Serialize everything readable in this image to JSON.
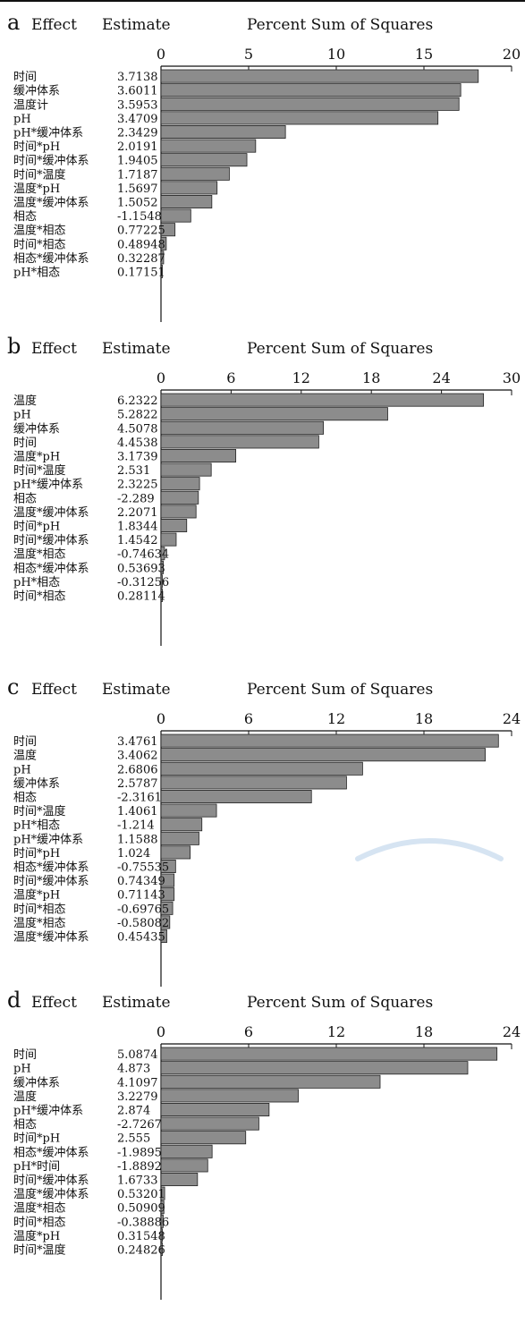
{
  "headers": {
    "effect": "Effect",
    "estimate": "Estimate",
    "title": "Percent Sum of Squares"
  },
  "colors": {
    "bar_fill": "#8c8c8c",
    "bar_stroke": "#222222"
  },
  "chart_data": [
    {
      "type": "bar",
      "orientation": "horizontal",
      "panel": "a",
      "xlim": [
        0,
        20
      ],
      "ticks": [
        0,
        5,
        10,
        15,
        20
      ],
      "effects": [
        "时间",
        "缓冲体系",
        "温度计",
        "pH",
        "pH*缓冲体系",
        "时间*pH",
        "时间*缓冲体系",
        "时间*温度",
        "温度*pH",
        "温度*缓冲体系",
        "相态",
        "温度*相态",
        "时间*相态",
        "相态*缓冲体系",
        "pH*相态"
      ],
      "estimates": [
        "3.7138",
        "3.6011",
        "3.5953",
        "3.4709",
        "2.3429",
        "2.0191",
        "1.9405",
        "1.7187",
        "1.5697",
        "1.5052",
        "-1.1548",
        "0.77225",
        "0.48948",
        "0.32287",
        "0.17151"
      ],
      "values": [
        18.1,
        17.1,
        17.0,
        15.8,
        7.1,
        5.4,
        4.9,
        3.9,
        3.2,
        2.9,
        1.7,
        0.8,
        0.3,
        0.15,
        0.05
      ]
    },
    {
      "type": "bar",
      "orientation": "horizontal",
      "panel": "b",
      "xlim": [
        0,
        30
      ],
      "ticks": [
        0,
        6,
        12,
        18,
        24,
        30
      ],
      "effects": [
        "温度",
        "pH",
        "缓冲体系",
        "时间",
        "温度*pH",
        "时间*温度",
        "pH*缓冲体系",
        "相态",
        "温度*缓冲体系",
        "时间*pH",
        "时间*缓冲体系",
        "温度*相态",
        "相态*缓冲体系",
        "pH*相态",
        "时间*相态"
      ],
      "estimates": [
        "6.2322",
        "5.2822",
        "4.5078",
        "4.4538",
        "3.1739",
        "2.531",
        "2.3225",
        "-2.289",
        "2.2071",
        "1.8344",
        "1.4542",
        "-0.74634",
        "0.53693",
        "-0.31256",
        "0.28114"
      ],
      "values": [
        27.6,
        19.4,
        13.9,
        13.5,
        6.4,
        4.3,
        3.3,
        3.2,
        3.0,
        2.2,
        1.3,
        0.3,
        0.2,
        0.1,
        0.05
      ]
    },
    {
      "type": "bar",
      "orientation": "horizontal",
      "panel": "c",
      "xlim": [
        0,
        24
      ],
      "ticks": [
        0,
        6,
        12,
        18,
        24
      ],
      "effects": [
        "时间",
        "温度",
        "pH",
        "缓冲体系",
        "相态",
        "时间*温度",
        "pH*相态",
        "pH*缓冲体系",
        "时间*pH",
        "相态*缓冲体系",
        "时间*缓冲体系",
        "温度*pH",
        "时间*相态",
        "温度*相态",
        "温度*缓冲体系"
      ],
      "estimates": [
        "3.4761",
        "3.4062",
        "2.6806",
        "2.5787",
        "-2.3161",
        "1.4061",
        "-1.214",
        "1.1588",
        "1.024",
        "-0.75535",
        "0.74349",
        "0.71143",
        "-0.69765",
        "-0.58082",
        "0.45435"
      ],
      "values": [
        23.1,
        22.2,
        13.8,
        12.7,
        10.3,
        3.8,
        2.8,
        2.6,
        2.0,
        1.0,
        0.9,
        0.9,
        0.8,
        0.6,
        0.4
      ]
    },
    {
      "type": "bar",
      "orientation": "horizontal",
      "panel": "d",
      "xlim": [
        0,
        24
      ],
      "ticks": [
        0,
        6,
        12,
        18,
        24
      ],
      "effects": [
        "时间",
        "pH",
        "缓冲体系",
        "温度",
        "pH*缓冲体系",
        "相态",
        "时间*pH",
        "相态*缓冲体系",
        "pH*时间",
        "时间*缓冲体系",
        "温度*缓冲体系",
        "温度*相态",
        "时间*相态",
        "温度*pH",
        "时间*温度"
      ],
      "estimates": [
        "5.0874",
        "4.873",
        "4.1097",
        "3.2279",
        "2.874",
        "-2.7267",
        "2.555",
        "-1.9895",
        "-1.8892",
        "1.6733",
        "0.53201",
        "0.50909",
        "-0.38886",
        "0.31548",
        "0.24826"
      ],
      "values": [
        23.0,
        21.0,
        15.0,
        9.4,
        7.4,
        6.7,
        5.8,
        3.5,
        3.2,
        2.5,
        0.25,
        0.2,
        0.15,
        0.1,
        0.05
      ]
    }
  ]
}
